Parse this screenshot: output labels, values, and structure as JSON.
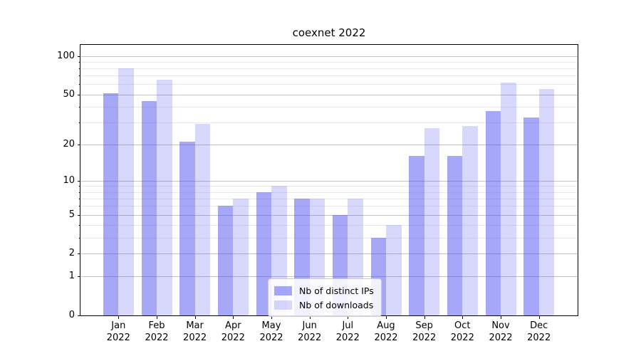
{
  "chart_data": {
    "type": "bar",
    "title": "coexnet 2022",
    "months": [
      "Jan",
      "Feb",
      "Mar",
      "Apr",
      "May",
      "Jun",
      "Jul",
      "Aug",
      "Sep",
      "Oct",
      "Nov",
      "Dec"
    ],
    "year": "2022",
    "series": [
      {
        "name": "Nb of distinct IPs",
        "key": "distinct-ips",
        "color_hex": "#a8a8f4",
        "fill": "rgba(60,60,240,0.45)",
        "values": [
          51,
          44,
          21,
          6,
          8,
          7,
          5,
          3,
          16,
          16,
          37,
          33
        ]
      },
      {
        "name": "Nb of downloads",
        "key": "downloads",
        "color_hex": "#d9d9f9",
        "fill": "rgba(60,60,240,0.20)",
        "values": [
          80,
          65,
          29,
          7,
          9,
          7,
          7,
          4,
          27,
          28,
          62,
          55
        ]
      }
    ],
    "xlabel": "",
    "ylabel": "",
    "yscale": "log10(value+1)",
    "ylim": [
      0,
      122
    ],
    "y_major_ticks": [
      0,
      1,
      2,
      5,
      10,
      20,
      50,
      100
    ],
    "y_minor_ticks": [
      3,
      4,
      6,
      7,
      8,
      9,
      30,
      40,
      60,
      70,
      80,
      90
    ],
    "grid": "on",
    "legend_position": "inside lower-center",
    "grid_major_color": "#c3c3c3",
    "grid_minor_color": "#e9e9e9"
  }
}
